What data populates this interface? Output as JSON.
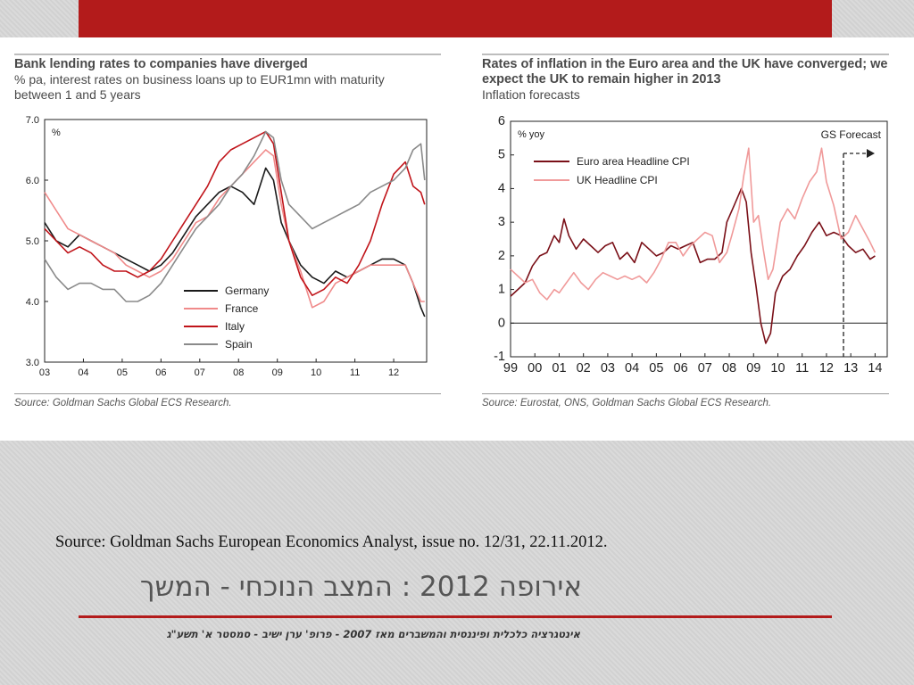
{
  "slide": {
    "source_note": "Source: Goldman Sachs European Economics Analyst, issue no. 12/31, 22.11.2012.",
    "title": "אירופה 2012 : המצב הנוכחי - המשך",
    "footer": "אינטגרציה כלכלית ופיננסית והמשברים מאז 2007 - פרופ' ערן ישיב - סמסטר א' תשע\"ג",
    "accent_color": "#b31b1b"
  },
  "chart_data": [
    {
      "type": "line",
      "title": "Bank lending rates to companies have diverged",
      "subtitle": "% pa, interest rates on business loans up to EUR1mn with maturity between 1 and 5 years",
      "unit_label": "%",
      "source": "Source: Goldman Sachs Global ECS Research.",
      "ylim": [
        3.0,
        7.0
      ],
      "yticks": [
        "3.0",
        "4.0",
        "5.0",
        "6.0",
        "7.0"
      ],
      "xlim": [
        2003,
        2012.85
      ],
      "xticks": [
        "03",
        "04",
        "05",
        "06",
        "07",
        "08",
        "09",
        "10",
        "11",
        "12"
      ],
      "legend_position": "bottom-right",
      "series": [
        {
          "name": "Germany",
          "color": "#1a1a1a",
          "x": [
            2003.0,
            2003.3,
            2003.6,
            2003.9,
            2004.2,
            2004.5,
            2004.8,
            2005.1,
            2005.4,
            2005.7,
            2006.0,
            2006.3,
            2006.6,
            2006.9,
            2007.2,
            2007.5,
            2007.8,
            2008.1,
            2008.4,
            2008.7,
            2008.9,
            2009.1,
            2009.3,
            2009.6,
            2009.9,
            2010.2,
            2010.5,
            2010.8,
            2011.1,
            2011.4,
            2011.7,
            2012.0,
            2012.3,
            2012.5,
            2012.7,
            2012.8
          ],
          "values": [
            5.3,
            5.0,
            4.9,
            5.1,
            5.0,
            4.9,
            4.8,
            4.7,
            4.6,
            4.5,
            4.6,
            4.8,
            5.1,
            5.4,
            5.6,
            5.8,
            5.9,
            5.8,
            5.6,
            6.2,
            6.0,
            5.3,
            5.0,
            4.6,
            4.4,
            4.3,
            4.5,
            4.4,
            4.5,
            4.6,
            4.7,
            4.7,
            4.6,
            4.3,
            3.9,
            3.75
          ]
        },
        {
          "name": "France",
          "color": "#f08a8a",
          "x": [
            2003.0,
            2003.3,
            2003.6,
            2003.9,
            2004.2,
            2004.5,
            2004.8,
            2005.1,
            2005.4,
            2005.7,
            2006.0,
            2006.3,
            2006.6,
            2006.9,
            2007.2,
            2007.5,
            2007.8,
            2008.1,
            2008.4,
            2008.7,
            2008.9,
            2009.1,
            2009.3,
            2009.6,
            2009.9,
            2010.2,
            2010.5,
            2010.8,
            2011.1,
            2011.4,
            2011.7,
            2012.0,
            2012.3,
            2012.5,
            2012.7,
            2012.8
          ],
          "values": [
            5.8,
            5.5,
            5.2,
            5.1,
            5.0,
            4.9,
            4.8,
            4.6,
            4.5,
            4.4,
            4.5,
            4.7,
            5.0,
            5.3,
            5.4,
            5.7,
            5.9,
            6.1,
            6.3,
            6.5,
            6.4,
            5.6,
            5.0,
            4.5,
            3.9,
            4.0,
            4.3,
            4.4,
            4.5,
            4.6,
            4.6,
            4.6,
            4.6,
            4.3,
            4.0,
            4.0
          ]
        },
        {
          "name": "Italy",
          "color": "#c0141a",
          "x": [
            2003.0,
            2003.3,
            2003.6,
            2003.9,
            2004.2,
            2004.5,
            2004.8,
            2005.1,
            2005.4,
            2005.7,
            2006.0,
            2006.3,
            2006.6,
            2006.9,
            2007.2,
            2007.5,
            2007.8,
            2008.1,
            2008.4,
            2008.7,
            2008.9,
            2009.1,
            2009.3,
            2009.6,
            2009.9,
            2010.2,
            2010.5,
            2010.8,
            2011.1,
            2011.4,
            2011.7,
            2012.0,
            2012.3,
            2012.5,
            2012.7,
            2012.8
          ],
          "values": [
            5.2,
            5.0,
            4.8,
            4.9,
            4.8,
            4.6,
            4.5,
            4.5,
            4.4,
            4.5,
            4.7,
            5.0,
            5.3,
            5.6,
            5.9,
            6.3,
            6.5,
            6.6,
            6.7,
            6.8,
            6.6,
            5.8,
            5.0,
            4.4,
            4.1,
            4.2,
            4.4,
            4.3,
            4.6,
            5.0,
            5.6,
            6.1,
            6.3,
            5.9,
            5.8,
            5.6
          ]
        },
        {
          "name": "Spain",
          "color": "#8a8a8a",
          "x": [
            2003.0,
            2003.3,
            2003.6,
            2003.9,
            2004.2,
            2004.5,
            2004.8,
            2005.1,
            2005.4,
            2005.7,
            2006.0,
            2006.3,
            2006.6,
            2006.9,
            2007.2,
            2007.5,
            2007.8,
            2008.1,
            2008.4,
            2008.7,
            2008.9,
            2009.1,
            2009.3,
            2009.6,
            2009.9,
            2010.2,
            2010.5,
            2010.8,
            2011.1,
            2011.4,
            2011.7,
            2012.0,
            2012.3,
            2012.5,
            2012.7,
            2012.8
          ],
          "values": [
            4.7,
            4.4,
            4.2,
            4.3,
            4.3,
            4.2,
            4.2,
            4.0,
            4.0,
            4.1,
            4.3,
            4.6,
            4.9,
            5.2,
            5.4,
            5.6,
            5.9,
            6.1,
            6.4,
            6.8,
            6.7,
            6.0,
            5.6,
            5.4,
            5.2,
            5.3,
            5.4,
            5.5,
            5.6,
            5.8,
            5.9,
            6.0,
            6.2,
            6.5,
            6.6,
            6.0
          ]
        }
      ]
    },
    {
      "type": "line",
      "title": "Rates of inflation in the Euro area and the UK have converged; we expect the UK to remain higher in 2013",
      "subtitle": "Inflation forecasts",
      "unit_label": "% yoy",
      "source": "Source: Eurostat, ONS, Goldman Sachs Global ECS Research.",
      "annotation": "GS  Forecast",
      "forecast_start": 2012.7,
      "ylim": [
        -1,
        6
      ],
      "yticks": [
        "-1",
        "0",
        "1",
        "2",
        "3",
        "4",
        "5",
        "6"
      ],
      "xlim": [
        1999,
        2014.5
      ],
      "xticks": [
        "99",
        "00",
        "01",
        "02",
        "03",
        "04",
        "05",
        "06",
        "07",
        "08",
        "09",
        "10",
        "11",
        "12",
        "13",
        "14"
      ],
      "legend_position": "top-left",
      "series": [
        {
          "name": "Euro area  Headline CPI",
          "color": "#7a1018",
          "x": [
            1999.0,
            1999.3,
            1999.6,
            1999.9,
            2000.2,
            2000.5,
            2000.8,
            2001.0,
            2001.2,
            2001.4,
            2001.7,
            2002.0,
            2002.3,
            2002.6,
            2002.9,
            2003.2,
            2003.5,
            2003.8,
            2004.1,
            2004.4,
            2004.7,
            2005.0,
            2005.3,
            2005.6,
            2005.9,
            2006.2,
            2006.5,
            2006.8,
            2007.1,
            2007.4,
            2007.7,
            2007.9,
            2008.2,
            2008.5,
            2008.7,
            2008.9,
            2009.1,
            2009.3,
            2009.5,
            2009.7,
            2009.9,
            2010.2,
            2010.5,
            2010.8,
            2011.1,
            2011.4,
            2011.7,
            2012.0,
            2012.3,
            2012.6,
            2012.9,
            2013.2,
            2013.5,
            2013.8,
            2014.0
          ],
          "values": [
            0.8,
            1.0,
            1.2,
            1.7,
            2.0,
            2.1,
            2.6,
            2.4,
            3.1,
            2.6,
            2.2,
            2.5,
            2.3,
            2.1,
            2.3,
            2.4,
            1.9,
            2.1,
            1.8,
            2.4,
            2.2,
            2.0,
            2.1,
            2.3,
            2.2,
            2.3,
            2.4,
            1.8,
            1.9,
            1.9,
            2.1,
            3.0,
            3.5,
            4.0,
            3.6,
            2.1,
            1.1,
            0.0,
            -0.6,
            -0.3,
            0.9,
            1.4,
            1.6,
            2.0,
            2.3,
            2.7,
            3.0,
            2.6,
            2.7,
            2.6,
            2.3,
            2.1,
            2.2,
            1.9,
            2.0
          ]
        },
        {
          "name": "UK Headline CPI",
          "color": "#f09a9a",
          "x": [
            1999.0,
            1999.3,
            1999.6,
            1999.9,
            2000.2,
            2000.5,
            2000.8,
            2001.0,
            2001.3,
            2001.6,
            2001.9,
            2002.2,
            2002.5,
            2002.8,
            2003.1,
            2003.4,
            2003.7,
            2004.0,
            2004.3,
            2004.6,
            2004.9,
            2005.2,
            2005.5,
            2005.8,
            2006.1,
            2006.4,
            2006.7,
            2007.0,
            2007.3,
            2007.6,
            2007.9,
            2008.1,
            2008.4,
            2008.6,
            2008.8,
            2009.0,
            2009.2,
            2009.4,
            2009.6,
            2009.8,
            2010.1,
            2010.4,
            2010.7,
            2011.0,
            2011.3,
            2011.6,
            2011.8,
            2012.0,
            2012.3,
            2012.6,
            2012.9,
            2013.2,
            2013.5,
            2013.8,
            2014.0
          ],
          "values": [
            1.6,
            1.4,
            1.2,
            1.3,
            0.9,
            0.7,
            1.0,
            0.9,
            1.2,
            1.5,
            1.2,
            1.0,
            1.3,
            1.5,
            1.4,
            1.3,
            1.4,
            1.3,
            1.4,
            1.2,
            1.5,
            1.9,
            2.4,
            2.4,
            2.0,
            2.3,
            2.5,
            2.7,
            2.6,
            1.8,
            2.1,
            2.6,
            3.4,
            4.4,
            5.2,
            3.0,
            3.2,
            2.2,
            1.3,
            1.6,
            3.0,
            3.4,
            3.1,
            3.7,
            4.2,
            4.5,
            5.2,
            4.2,
            3.5,
            2.5,
            2.7,
            3.2,
            2.8,
            2.4,
            2.1
          ]
        }
      ]
    }
  ]
}
